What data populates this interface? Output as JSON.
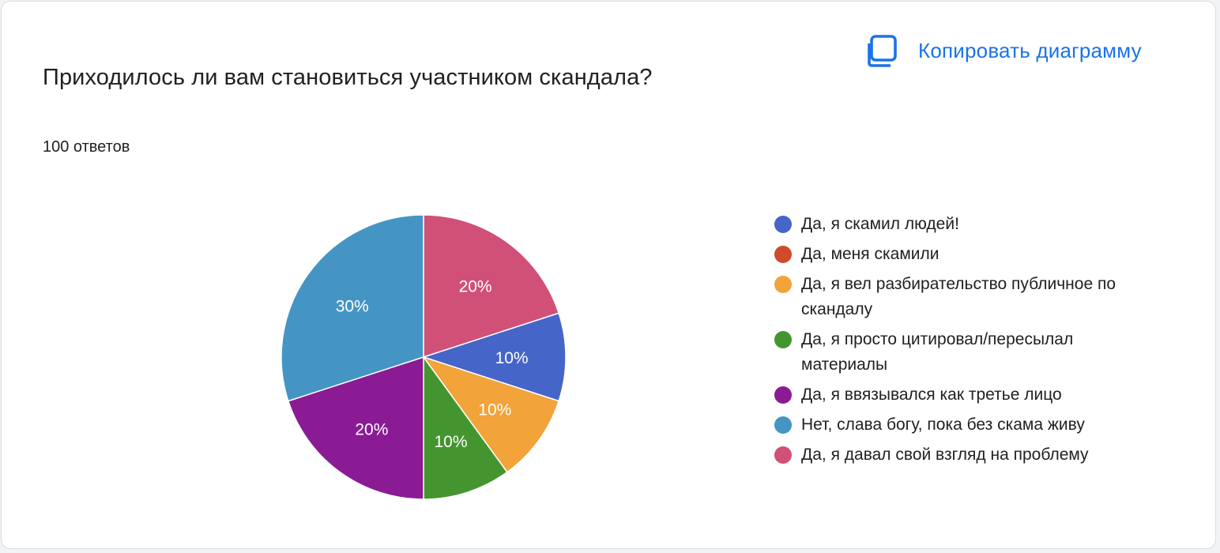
{
  "header": {
    "title": "Приходилось ли вам становиться участником скандала?",
    "responses": "100 ответов",
    "copy_label": "Копировать диаграмму",
    "copy_icon": "copy-icon"
  },
  "colors": {
    "accent": "#1a73e8",
    "slice_label": "#ffffff"
  },
  "chart_data": {
    "type": "pie",
    "title": "Приходилось ли вам становиться участником скандала?",
    "total_responses": 100,
    "legend_position": "right",
    "start": "12 o'clock, clockwise",
    "slices": [
      {
        "label": "Да, я давал свой взгляд на проблему",
        "value": 20,
        "pct_label": "20%",
        "color": "#d05078"
      },
      {
        "label": "Да, я скамил людей!",
        "value": 10,
        "pct_label": "10%",
        "color": "#4565c8"
      },
      {
        "label": "Да, меня скамили",
        "value": 0,
        "pct_label": "",
        "color": "#d04a2c"
      },
      {
        "label": "Да, я вел разбирательство публичное по скандалу",
        "value": 10,
        "pct_label": "10%",
        "color": "#f2a33a"
      },
      {
        "label": "Да, я просто цитировал/пересылал материалы",
        "value": 10,
        "pct_label": "10%",
        "color": "#44952f"
      },
      {
        "label": "Да, я ввязывался как третье лицо",
        "value": 20,
        "pct_label": "20%",
        "color": "#8b1b95"
      },
      {
        "label": "Нет, слава богу, пока без скама живу",
        "value": 30,
        "pct_label": "30%",
        "color": "#4495c4"
      }
    ],
    "legend": [
      {
        "label": "Да, я скамил людей!",
        "color": "#4565c8"
      },
      {
        "label": "Да, меня скамили",
        "color": "#d04a2c"
      },
      {
        "label": "Да, я вел разбирательство публичное по скандалу",
        "color": "#f2a33a"
      },
      {
        "label": "Да, я просто цитировал/пересылал материалы",
        "color": "#44952f"
      },
      {
        "label": "Да, я ввязывался как третье лицо",
        "color": "#8b1b95"
      },
      {
        "label": "Нет, слава богу, пока без скама живу",
        "color": "#4495c4"
      },
      {
        "label": "Да, я давал свой взгляд на проблему",
        "color": "#d05078"
      }
    ]
  }
}
